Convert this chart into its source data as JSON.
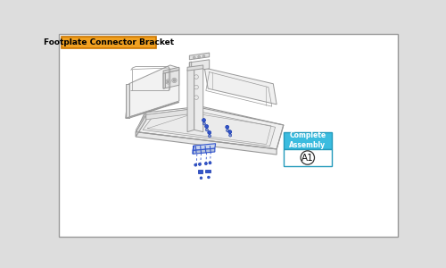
{
  "title": "Footplate Connector Bracket",
  "title_bg": "#F0A020",
  "title_text_color": "#000000",
  "bg_color": "#FFFFFF",
  "border_color": "#AAAAAA",
  "assembly_label": "Complete\nAssembly",
  "assembly_id": "A1",
  "assembly_bg": "#3BBCDF",
  "fig_bg": "#DDDDDD",
  "blue_parts": "#3355CC",
  "lc": "#999999",
  "lc2": "#BBBBBB",
  "lw": 0.7,
  "lw2": 0.5
}
